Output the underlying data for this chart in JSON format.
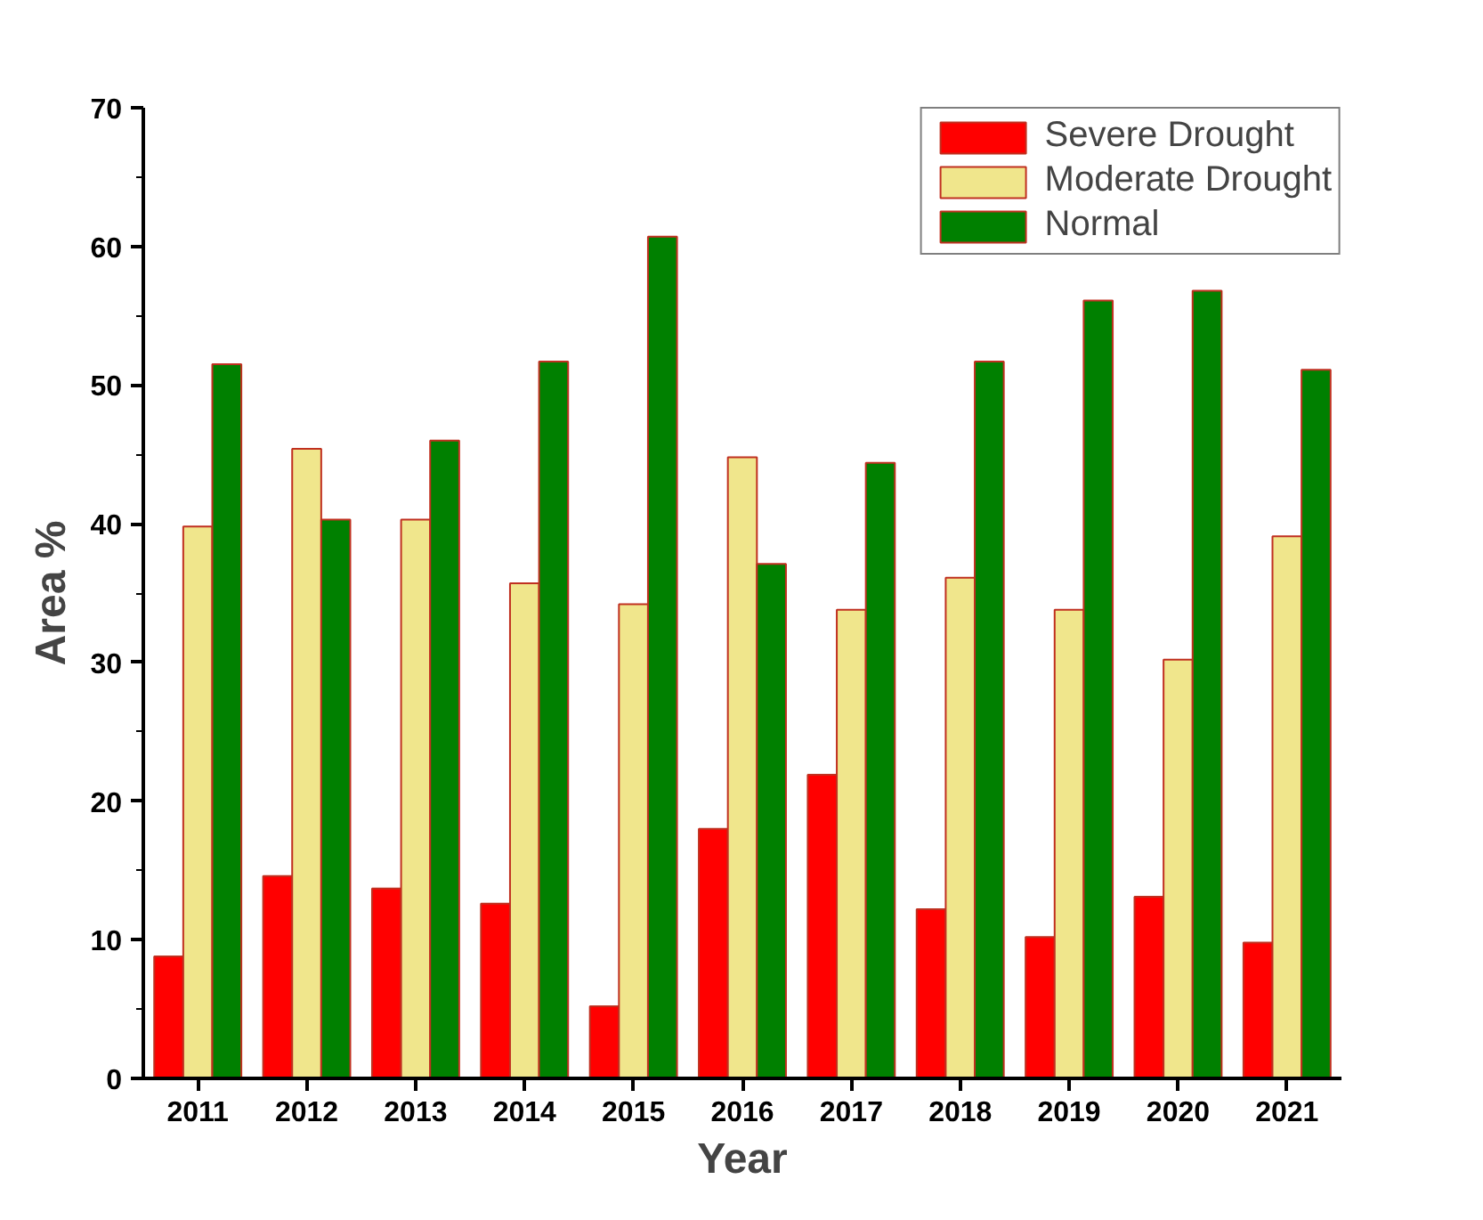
{
  "chart_data": {
    "type": "bar",
    "xlabel": "Year",
    "ylabel": "Area %",
    "categories": [
      "2011",
      "2012",
      "2013",
      "2014",
      "2015",
      "2016",
      "2017",
      "2018",
      "2019",
      "2020",
      "2021"
    ],
    "series": [
      {
        "name": "Severe Drought",
        "color": "#ff0000",
        "values": [
          8.8,
          14.6,
          13.7,
          12.6,
          5.2,
          18.0,
          21.9,
          12.2,
          10.2,
          13.1,
          9.8
        ]
      },
      {
        "name": "Moderate Drought",
        "color": "#f0e68c",
        "values": [
          39.8,
          45.4,
          40.3,
          35.7,
          34.2,
          44.8,
          33.8,
          36.1,
          33.8,
          30.2,
          39.1
        ]
      },
      {
        "name": "Normal",
        "color": "#008000",
        "values": [
          51.5,
          40.3,
          46.0,
          51.7,
          60.7,
          37.1,
          44.4,
          51.7,
          56.1,
          56.8,
          51.1
        ]
      }
    ],
    "ylim": [
      0,
      70
    ],
    "yticks": [
      0,
      10,
      20,
      30,
      40,
      50,
      60,
      70
    ],
    "grid": false,
    "legend": "top right"
  }
}
